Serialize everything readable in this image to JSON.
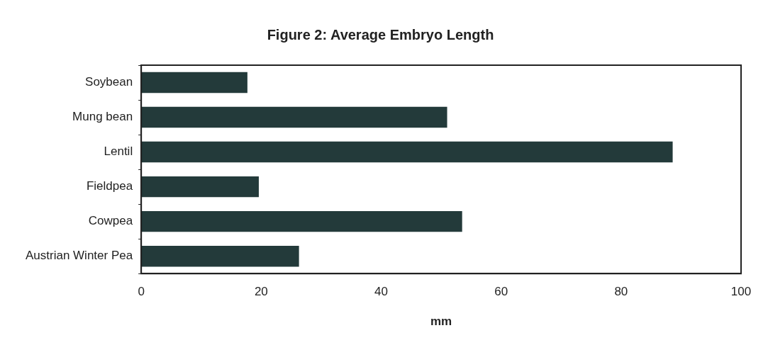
{
  "chart_data": {
    "type": "bar",
    "orientation": "horizontal",
    "title": "Figure 2: Average Embryo Length",
    "xlabel": "mm",
    "categories": [
      "Soybean",
      "Mung bean",
      "Lentil",
      "Fieldpea",
      "Cowpea",
      "Austrian Winter Pea"
    ],
    "values": [
      17.7,
      51,
      88.6,
      19.6,
      53.5,
      26.3
    ],
    "color": "#233a3a",
    "xlim": [
      0,
      100
    ],
    "xticks": [
      0,
      20,
      40,
      60,
      80,
      100
    ],
    "grid": false,
    "legend": false
  }
}
